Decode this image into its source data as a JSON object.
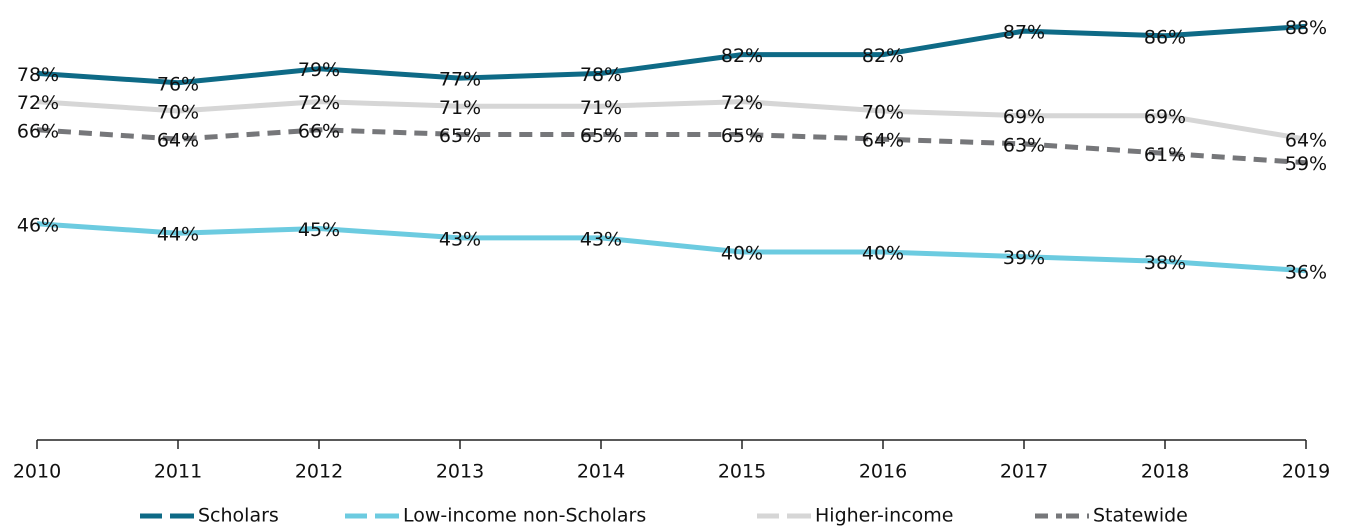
{
  "chart_data": {
    "type": "line",
    "categories": [
      "2010",
      "2011",
      "2012",
      "2013",
      "2014",
      "2015",
      "2016",
      "2017",
      "2018",
      "2019"
    ],
    "ylim": [
      0,
      90
    ],
    "legend": "bottom",
    "series": [
      {
        "name": "Scholars",
        "color": "#0e6a86",
        "dash": false,
        "values": [
          78,
          76,
          79,
          77,
          78,
          82,
          82,
          87,
          86,
          88
        ],
        "value_labels": [
          "78%",
          "76%",
          "79%",
          "77%",
          "78%",
          "82%",
          "82%",
          "87%",
          "86%",
          "88%"
        ]
      },
      {
        "name": "Low-income non-Scholars",
        "color": "#6ccbe0",
        "dash": false,
        "values": [
          46,
          44,
          45,
          43,
          43,
          40,
          40,
          39,
          38,
          36
        ],
        "value_labels": [
          "46%",
          "44%",
          "45%",
          "43%",
          "43%",
          "40%",
          "40%",
          "39%",
          "38%",
          "36%"
        ]
      },
      {
        "name": "Higher-income",
        "color": "#d6d6d6",
        "dash": false,
        "values": [
          72,
          70,
          72,
          71,
          71,
          72,
          70,
          69,
          69,
          64
        ],
        "value_labels": [
          "72%",
          "70%",
          "72%",
          "71%",
          "71%",
          "72%",
          "70%",
          "69%",
          "69%",
          "64%"
        ]
      },
      {
        "name": "Statewide",
        "color": "#76777a",
        "dash": true,
        "values": [
          66,
          64,
          66,
          65,
          65,
          65,
          64,
          63,
          61,
          59
        ],
        "value_labels": [
          "66%",
          "64%",
          "66%",
          "65%",
          "65%",
          "65%",
          "64%",
          "63%",
          "61%",
          "59%"
        ]
      }
    ]
  }
}
